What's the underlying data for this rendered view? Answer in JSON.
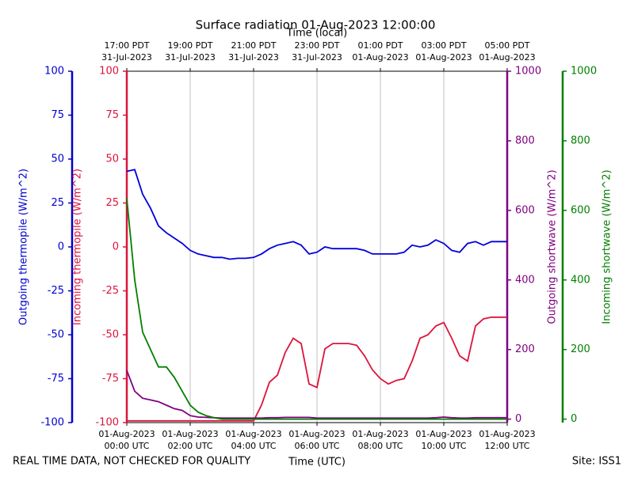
{
  "chart_data": {
    "type": "line",
    "title": "Surface radiation 01-Aug-2023 12:00:00",
    "xlabel": "Time (UTC)",
    "x2label": "Time (local)",
    "footer_left": "REAL TIME DATA, NOT CHECKED FOR QUALITY",
    "footer_right": "Site: ISS1",
    "ylabel": "Outgoing thermopile (W/m^2)",
    "y2label": "Incoming thermopile (W/m^2)",
    "y3label": "Outgoing shortwave (W/m^2)",
    "y4label": "Incoming shortwave (W/m^2)",
    "xlim": [
      "2023-08-01T00:00Z",
      "2023-08-01T12:00Z"
    ],
    "xticks": [
      {
        "value": "2023-08-01T00:00Z",
        "label": [
          "01-Aug-2023",
          "00:00 UTC"
        ]
      },
      {
        "value": "2023-08-01T02:00Z",
        "label": [
          "01-Aug-2023",
          "02:00 UTC"
        ]
      },
      {
        "value": "2023-08-01T04:00Z",
        "label": [
          "01-Aug-2023",
          "04:00 UTC"
        ]
      },
      {
        "value": "2023-08-01T06:00Z",
        "label": [
          "01-Aug-2023",
          "06:00 UTC"
        ]
      },
      {
        "value": "2023-08-01T08:00Z",
        "label": [
          "01-Aug-2023",
          "08:00 UTC"
        ]
      },
      {
        "value": "2023-08-01T10:00Z",
        "label": [
          "01-Aug-2023",
          "10:00 UTC"
        ]
      },
      {
        "value": "2023-08-01T12:00Z",
        "label": [
          "01-Aug-2023",
          "12:00 UTC"
        ]
      }
    ],
    "x2ticks": [
      {
        "value": "2023-08-01T00:00Z",
        "label": [
          "17:00 PDT",
          "31-Jul-2023"
        ]
      },
      {
        "value": "2023-08-01T02:00Z",
        "label": [
          "19:00 PDT",
          "31-Jul-2023"
        ]
      },
      {
        "value": "2023-08-01T04:00Z",
        "label": [
          "21:00 PDT",
          "31-Jul-2023"
        ]
      },
      {
        "value": "2023-08-01T06:00Z",
        "label": [
          "23:00 PDT",
          "31-Jul-2023"
        ]
      },
      {
        "value": "2023-08-01T08:00Z",
        "label": [
          "01:00 PDT",
          "01-Aug-2023"
        ]
      },
      {
        "value": "2023-08-01T10:00Z",
        "label": [
          "03:00 PDT",
          "01-Aug-2023"
        ]
      },
      {
        "value": "2023-08-01T12:00Z",
        "label": [
          "05:00 PDT",
          "01-Aug-2023"
        ]
      }
    ],
    "grid": true,
    "ylim": [
      -100,
      100
    ],
    "yticks": [
      -100,
      -75,
      -50,
      -25,
      0,
      25,
      50,
      75,
      100
    ],
    "ycolor": "#0000cc",
    "y2lim": [
      -100,
      100
    ],
    "y2ticks": [
      -100,
      -75,
      -50,
      -25,
      0,
      25,
      50,
      75,
      100
    ],
    "y2color": "#dc143c",
    "y3lim": [
      -10,
      1000
    ],
    "y3ticks": [
      0,
      200,
      400,
      600,
      800,
      1000
    ],
    "y3color": "#800080",
    "y4lim": [
      -10,
      1000
    ],
    "y4ticks": [
      0,
      200,
      400,
      600,
      800,
      1000
    ],
    "y4color": "#007f00",
    "x": [
      "2023-08-01T00:00Z",
      "2023-08-01T00:15Z",
      "2023-08-01T00:30Z",
      "2023-08-01T00:45Z",
      "2023-08-01T01:00Z",
      "2023-08-01T01:15Z",
      "2023-08-01T01:30Z",
      "2023-08-01T01:45Z",
      "2023-08-01T02:00Z",
      "2023-08-01T02:15Z",
      "2023-08-01T02:30Z",
      "2023-08-01T02:45Z",
      "2023-08-01T03:00Z",
      "2023-08-01T03:15Z",
      "2023-08-01T03:30Z",
      "2023-08-01T03:45Z",
      "2023-08-01T04:00Z",
      "2023-08-01T04:15Z",
      "2023-08-01T04:30Z",
      "2023-08-01T04:45Z",
      "2023-08-01T05:00Z",
      "2023-08-01T05:15Z",
      "2023-08-01T05:30Z",
      "2023-08-01T05:45Z",
      "2023-08-01T06:00Z",
      "2023-08-01T06:15Z",
      "2023-08-01T06:30Z",
      "2023-08-01T06:45Z",
      "2023-08-01T07:00Z",
      "2023-08-01T07:15Z",
      "2023-08-01T07:30Z",
      "2023-08-01T07:45Z",
      "2023-08-01T08:00Z",
      "2023-08-01T08:15Z",
      "2023-08-01T08:30Z",
      "2023-08-01T08:45Z",
      "2023-08-01T09:00Z",
      "2023-08-01T09:15Z",
      "2023-08-01T09:30Z",
      "2023-08-01T09:45Z",
      "2023-08-01T10:00Z",
      "2023-08-01T10:15Z",
      "2023-08-01T10:30Z",
      "2023-08-01T10:45Z",
      "2023-08-01T11:00Z",
      "2023-08-01T11:15Z",
      "2023-08-01T11:30Z",
      "2023-08-01T11:45Z",
      "2023-08-01T12:00Z"
    ],
    "series": [
      {
        "name": "Outgoing thermopile",
        "color": "#0000dd",
        "axis": "y",
        "values": [
          43,
          44,
          30,
          22,
          12,
          8,
          5,
          2,
          -2,
          -4,
          -5,
          -6,
          -6,
          -7,
          -6.5,
          -6.5,
          -6,
          -4,
          -1,
          1,
          2,
          3,
          1,
          -4,
          -3,
          0,
          -1,
          -1,
          -1,
          -1,
          -2,
          -4,
          -4,
          -4,
          -4,
          -3,
          1,
          0,
          1,
          4,
          2,
          -2,
          -3,
          2,
          3,
          1,
          3,
          3,
          3
        ]
      },
      {
        "name": "Incoming thermopile",
        "color": "#dc143c",
        "axis": "y2",
        "values": [
          -99,
          -99,
          -99,
          -99,
          -99,
          -99,
          -99,
          -99,
          -99,
          -99,
          -99,
          -99,
          -99,
          -99,
          -99,
          -99,
          -99,
          -90,
          -77,
          -73,
          -60,
          -52,
          -55,
          -78,
          -80,
          -58,
          -55,
          -55,
          -55,
          -56,
          -62,
          -70,
          -75,
          -78,
          -76,
          -75,
          -65,
          -52,
          -50,
          -45,
          -43,
          -52,
          -62,
          -65,
          -45,
          -41,
          -40,
          -40,
          -40
        ]
      },
      {
        "name": "Outgoing shortwave",
        "color": "#800080",
        "axis": "y3",
        "values": [
          140,
          80,
          60,
          55,
          50,
          40,
          30,
          25,
          10,
          6,
          5,
          4,
          3,
          3,
          3,
          3,
          3,
          3,
          4,
          4,
          5,
          5,
          5,
          5,
          3,
          3,
          3,
          3,
          3,
          3,
          3,
          3,
          3,
          3,
          3,
          3,
          3,
          3,
          3,
          4,
          6,
          4,
          3,
          3,
          4,
          4,
          4,
          4,
          4
        ]
      },
      {
        "name": "Incoming shortwave",
        "color": "#008000",
        "axis": "y4",
        "values": [
          634,
          400,
          250,
          200,
          150,
          150,
          120,
          80,
          40,
          20,
          10,
          4,
          0,
          0,
          0,
          0,
          0,
          0,
          0,
          0,
          0,
          0,
          0,
          0,
          0,
          0,
          0,
          0,
          0,
          0,
          0,
          0,
          0,
          0,
          0,
          0,
          0,
          0,
          0,
          0,
          0,
          0,
          0,
          0,
          0,
          0,
          0,
          0,
          0
        ]
      }
    ]
  }
}
